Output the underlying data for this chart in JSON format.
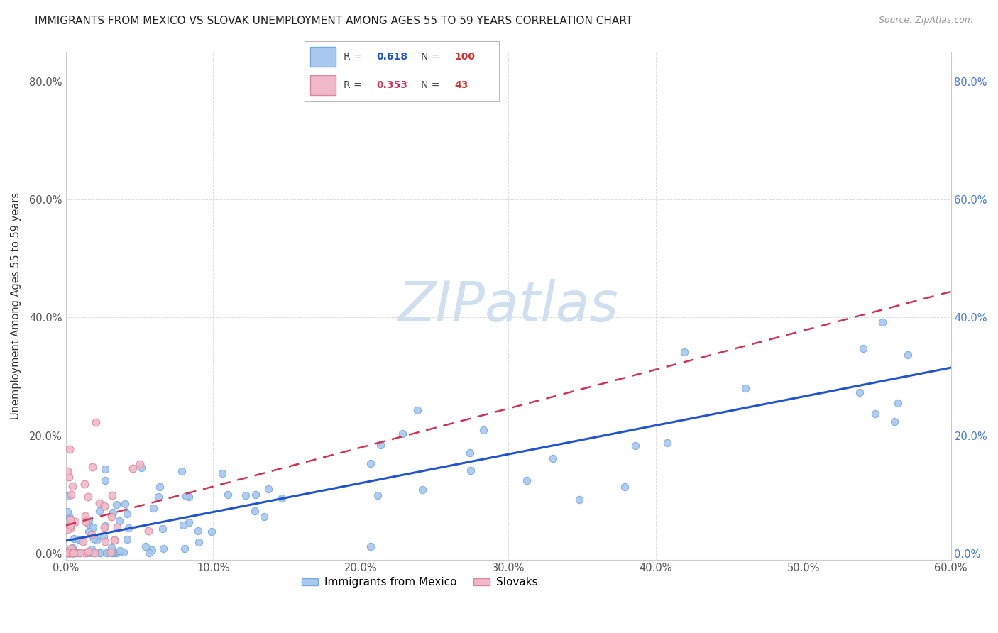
{
  "title": "IMMIGRANTS FROM MEXICO VS SLOVAK UNEMPLOYMENT AMONG AGES 55 TO 59 YEARS CORRELATION CHART",
  "source": "Source: ZipAtlas.com",
  "ylabel_label": "Unemployment Among Ages 55 to 59 years",
  "xlim": [
    0.0,
    0.6
  ],
  "ylim": [
    -0.01,
    0.85
  ],
  "series1_color": "#a8c8f0",
  "series1_edge": "#7aaad8",
  "series2_color": "#f0b8c8",
  "series2_edge": "#d88899",
  "line1_color": "#2255cc",
  "line2_color": "#cc3355",
  "watermark_color": "#d0dff0",
  "background_color": "#ffffff",
  "grid_color": "#dddddd",
  "right_tick_color": "#4477cc",
  "r1": 0.618,
  "n1": 100,
  "r2": 0.353,
  "n2": 43
}
